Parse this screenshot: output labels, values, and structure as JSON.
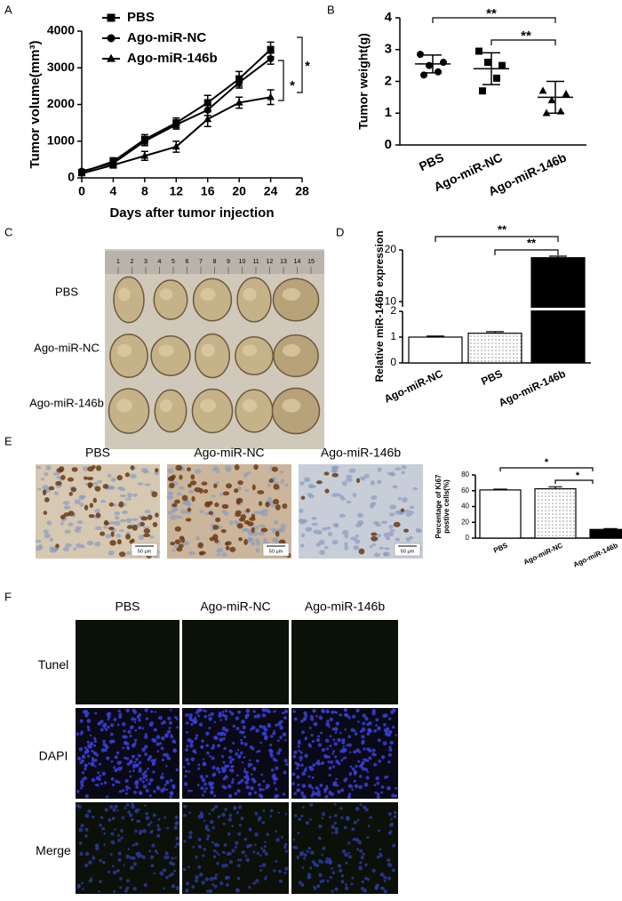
{
  "figure": {
    "panel_labels": [
      "A",
      "B",
      "C",
      "D",
      "E",
      "F"
    ]
  },
  "chart_data": [
    {
      "type": "line",
      "xlabel": "Days after tumor injection",
      "ylabel": "Tumor volume(mm³)",
      "x": [
        0,
        4,
        8,
        12,
        16,
        20,
        24
      ],
      "xlim": [
        0,
        28
      ],
      "xticks": [
        0,
        4,
        8,
        12,
        16,
        20,
        24,
        28
      ],
      "ylim": [
        0,
        4000
      ],
      "yticks": [
        0,
        1000,
        2000,
        3000,
        4000
      ],
      "legend": "upper left",
      "series": [
        {
          "name": "PBS",
          "color": "#000000",
          "marker": "square",
          "values": [
            150,
            450,
            1050,
            1500,
            2050,
            2700,
            3500
          ],
          "errors": [
            40,
            100,
            130,
            130,
            200,
            200,
            200
          ]
        },
        {
          "name": "Ago-miR-NC",
          "color": "#000000",
          "marker": "circle",
          "values": [
            180,
            400,
            1000,
            1450,
            1850,
            2600,
            3250
          ],
          "errors": [
            40,
            80,
            120,
            120,
            150,
            150,
            150
          ]
        },
        {
          "name": "Ago-miR-146b",
          "color": "#000000",
          "marker": "triangle",
          "values": [
            120,
            350,
            600,
            850,
            1600,
            2050,
            2200
          ],
          "errors": [
            40,
            80,
            120,
            150,
            200,
            150,
            200
          ]
        }
      ],
      "annotations": [
        "*",
        "*"
      ]
    },
    {
      "type": "dot",
      "ylabel": "Tumor weight(g)",
      "categories": [
        "PBS",
        "Ago-miR-NC",
        "Ago-miR-146b"
      ],
      "points": [
        [
          2.85,
          2.6,
          2.5,
          2.3,
          2.2
        ],
        [
          2.95,
          2.5,
          2.6,
          2.1,
          1.7
        ],
        [
          1.7,
          1.6,
          1.4,
          1.05,
          1.0
        ]
      ],
      "means": [
        2.55,
        2.4,
        1.5
      ],
      "sds": [
        0.28,
        0.5,
        0.5
      ],
      "markers": [
        "circle",
        "square",
        "triangle"
      ],
      "ylim": [
        0,
        4
      ],
      "yticks": [
        0,
        1,
        2,
        3,
        4
      ],
      "annotations": [
        "**",
        "**"
      ]
    },
    {
      "type": "bar",
      "ylabel": "Relative miR-146b expression",
      "categories": [
        "Ago-miR-NC",
        "PBS",
        "Ago-miR-146b"
      ],
      "values": [
        1.0,
        1.15,
        18.5
      ],
      "errors": [
        0.04,
        0.06,
        0.3
      ],
      "fills": [
        "white",
        "dotted",
        "black"
      ],
      "ylim": [
        0,
        20
      ],
      "yticks": [
        0,
        1,
        2,
        10,
        20
      ],
      "axis_break": [
        2,
        9
      ],
      "annotations": [
        "**",
        "**"
      ]
    },
    {
      "type": "bar",
      "ylabel": [
        "Percentage of Ki67",
        "postive cells(%)"
      ],
      "categories": [
        "PBS",
        "Ago-miR-NC",
        "Ago-miR-146b"
      ],
      "values": [
        61,
        62.5,
        11
      ],
      "errors": [
        1,
        2.5,
        1
      ],
      "fills": [
        "white",
        "dotted",
        "black"
      ],
      "ylim": [
        0,
        80
      ],
      "yticks": [
        0,
        20,
        40,
        60,
        80
      ],
      "annotations": [
        "*",
        "*"
      ]
    }
  ],
  "photo_c": {
    "row_labels": [
      "PBS",
      "Ago-miR-NC",
      "Ago-miR-146b"
    ],
    "ruler_labels": [
      1,
      2,
      3,
      4,
      5,
      6,
      7,
      8,
      9,
      10,
      11,
      12,
      13,
      14,
      15
    ]
  },
  "ihc_e": {
    "column_labels": [
      "PBS",
      "Ago-miR-NC",
      "Ago-miR-146b"
    ],
    "scale_labels": [
      "50 μm",
      "50 μm",
      "50 μm"
    ]
  },
  "fluorescence_f": {
    "column_labels": [
      "PBS",
      "Ago-miR-NC",
      "Ago-miR-146b"
    ],
    "row_labels": [
      "Tunel",
      "DAPI",
      "Merge"
    ]
  }
}
